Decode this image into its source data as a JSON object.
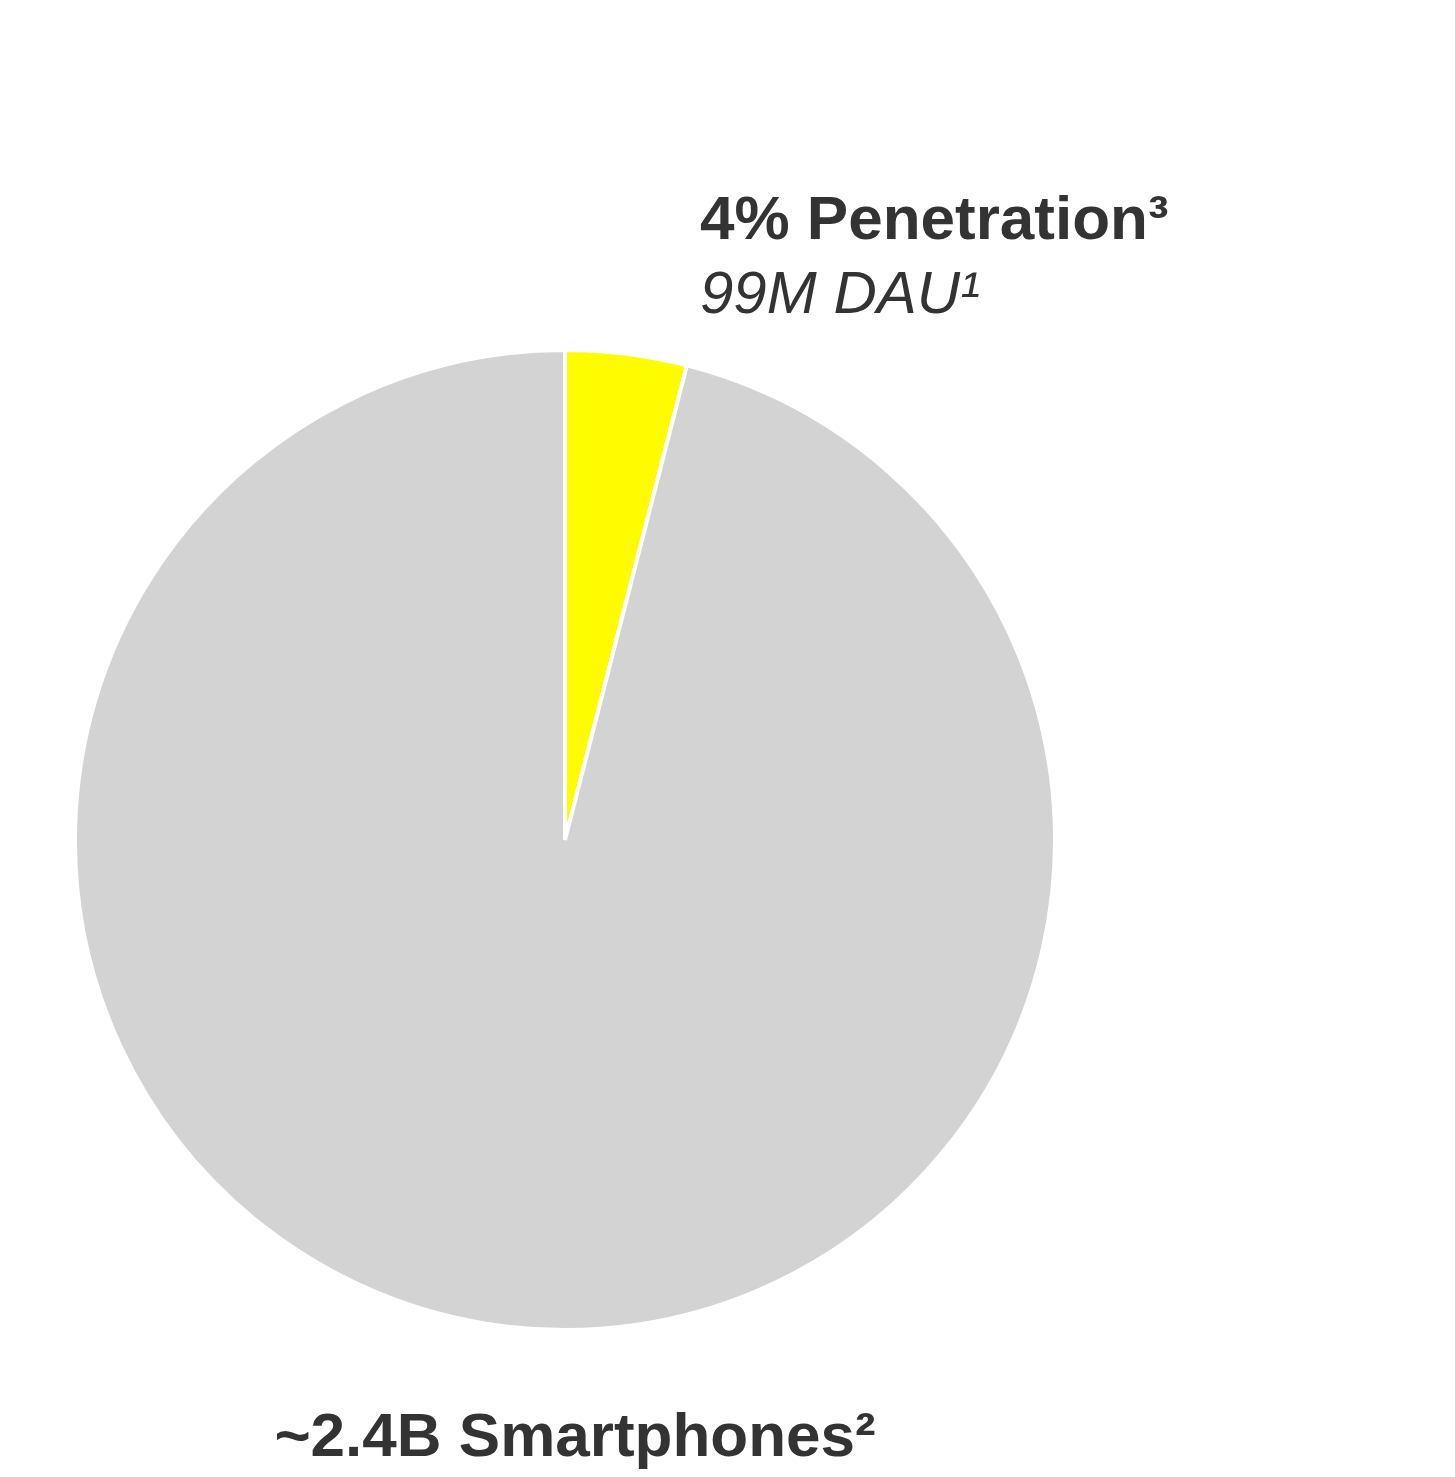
{
  "chart_data": {
    "type": "pie",
    "categories": [
      "4% Penetration³",
      "~2.4B Smartphones²"
    ],
    "values": [
      4,
      96
    ],
    "colors": [
      "#fffc00",
      "#d3d3d3"
    ],
    "annotations": [
      "99M DAU¹"
    ]
  }
}
